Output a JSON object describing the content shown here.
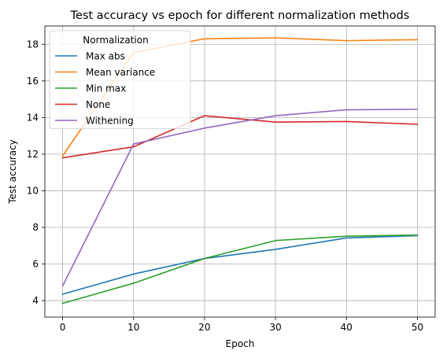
{
  "chart_data": {
    "type": "line",
    "title": "Test accuracy vs epoch for different normalization methods",
    "xlabel": "Epoch",
    "ylabel": "Test accuracy",
    "x": [
      0,
      10,
      20,
      30,
      40,
      50
    ],
    "xlim": [
      -2.5,
      52.5
    ],
    "ylim": [
      3.1,
      19.0
    ],
    "xticks": [
      0,
      10,
      20,
      30,
      40,
      50
    ],
    "yticks": [
      4,
      6,
      8,
      10,
      12,
      14,
      16,
      18
    ],
    "grid": true,
    "legend": {
      "title": "Normalization",
      "placement": "top-left"
    },
    "series": [
      {
        "name": "Max abs",
        "color": "#1f77b4",
        "values": [
          4.35,
          5.45,
          6.3,
          6.8,
          7.42,
          7.55
        ]
      },
      {
        "name": "Mean variance",
        "color": "#ff7f0e",
        "values": [
          11.9,
          17.55,
          18.3,
          18.35,
          18.2,
          18.25
        ]
      },
      {
        "name": "Min max",
        "color": "#2ca02c",
        "values": [
          3.85,
          4.95,
          6.3,
          7.28,
          7.52,
          7.58
        ]
      },
      {
        "name": "None",
        "color": "#d62728",
        "values": [
          11.8,
          12.4,
          14.1,
          13.75,
          13.78,
          13.63
        ]
      },
      {
        "name": "Withening",
        "color": "#9467bd",
        "values": [
          4.8,
          12.55,
          13.42,
          14.1,
          14.42,
          14.45
        ]
      }
    ]
  }
}
